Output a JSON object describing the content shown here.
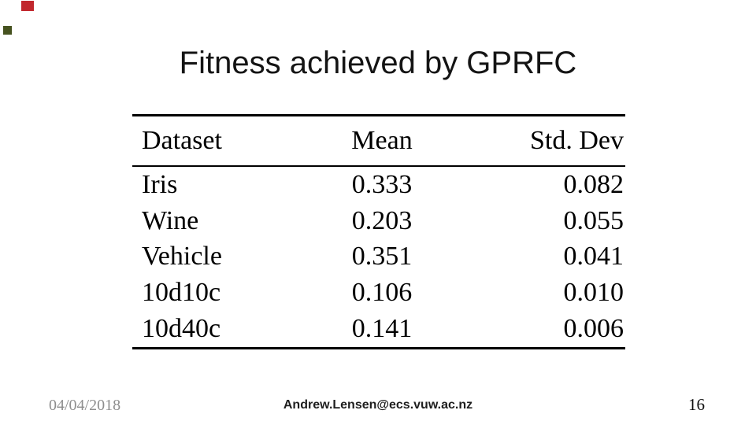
{
  "theme": {
    "background": "#ffffff",
    "text_color": "#141414",
    "rule_color": "#000000",
    "date_color": "#8e8e8e",
    "accent_red": "#c1272d",
    "accent_green": "#46521f"
  },
  "slide": {
    "title": "Fitness achieved by GPRFC",
    "footer": {
      "date": "04/04/2018",
      "email": "Andrew.Lensen@ecs.vuw.ac.nz",
      "page_number": "16"
    }
  },
  "table": {
    "columns": [
      "Dataset",
      "Mean",
      "Std. Dev"
    ],
    "rows": [
      [
        "Iris",
        "0.333",
        "0.082"
      ],
      [
        "Wine",
        "0.203",
        "0.055"
      ],
      [
        "Vehicle",
        "0.351",
        "0.041"
      ],
      [
        "10d10c",
        "0.106",
        "0.010"
      ],
      [
        "10d40c",
        "0.141",
        "0.006"
      ]
    ]
  }
}
